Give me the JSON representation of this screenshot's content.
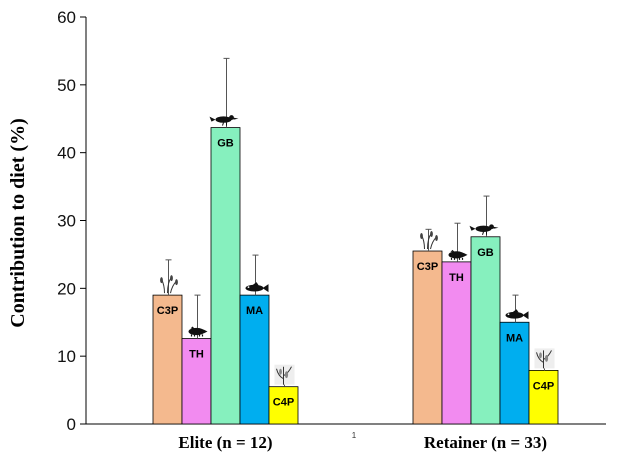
{
  "chart_data": {
    "type": "bar",
    "ylabel": "Contribution to diet (%)",
    "ylim": [
      0,
      60
    ],
    "yticks": [
      0,
      10,
      20,
      30,
      40,
      50,
      60
    ],
    "groups": [
      {
        "label": "Elite (n = 12)",
        "bars": [
          {
            "label": "C3P",
            "value": 19.0,
            "err": 5.2,
            "color": "#F4B98E",
            "icon": "grain-stalk-icon"
          },
          {
            "label": "TH",
            "value": 12.6,
            "err": 6.4,
            "color": "#F28BF0",
            "icon": "pig-icon"
          },
          {
            "label": "GB",
            "value": 43.7,
            "err": 10.2,
            "color": "#86F0BE",
            "icon": "bird-icon"
          },
          {
            "label": "MA",
            "value": 19.0,
            "err": 5.9,
            "color": "#00AEEF",
            "icon": "fish-icon"
          },
          {
            "label": "C4P",
            "value": 5.5,
            "err": 2.0,
            "color": "#FFFF00",
            "icon": "maize-plant-icon"
          }
        ]
      },
      {
        "label": "Retainer (n = 33)",
        "bars": [
          {
            "label": "C3P",
            "value": 25.5,
            "err": 3.2,
            "color": "#F4B98E",
            "icon": "grain-stalk-icon"
          },
          {
            "label": "TH",
            "value": 23.9,
            "err": 5.7,
            "color": "#F28BF0",
            "icon": "pig-icon"
          },
          {
            "label": "GB",
            "value": 27.6,
            "err": 6.0,
            "color": "#86F0BE",
            "icon": "bird-icon"
          },
          {
            "label": "MA",
            "value": 15.0,
            "err": 4.0,
            "color": "#00AEEF",
            "icon": "fish-icon"
          },
          {
            "label": "C4P",
            "value": 7.9,
            "err": 2.6,
            "color": "#FFFF00",
            "icon": "maize-plant-icon"
          }
        ]
      }
    ]
  },
  "footnote_mark": "1"
}
